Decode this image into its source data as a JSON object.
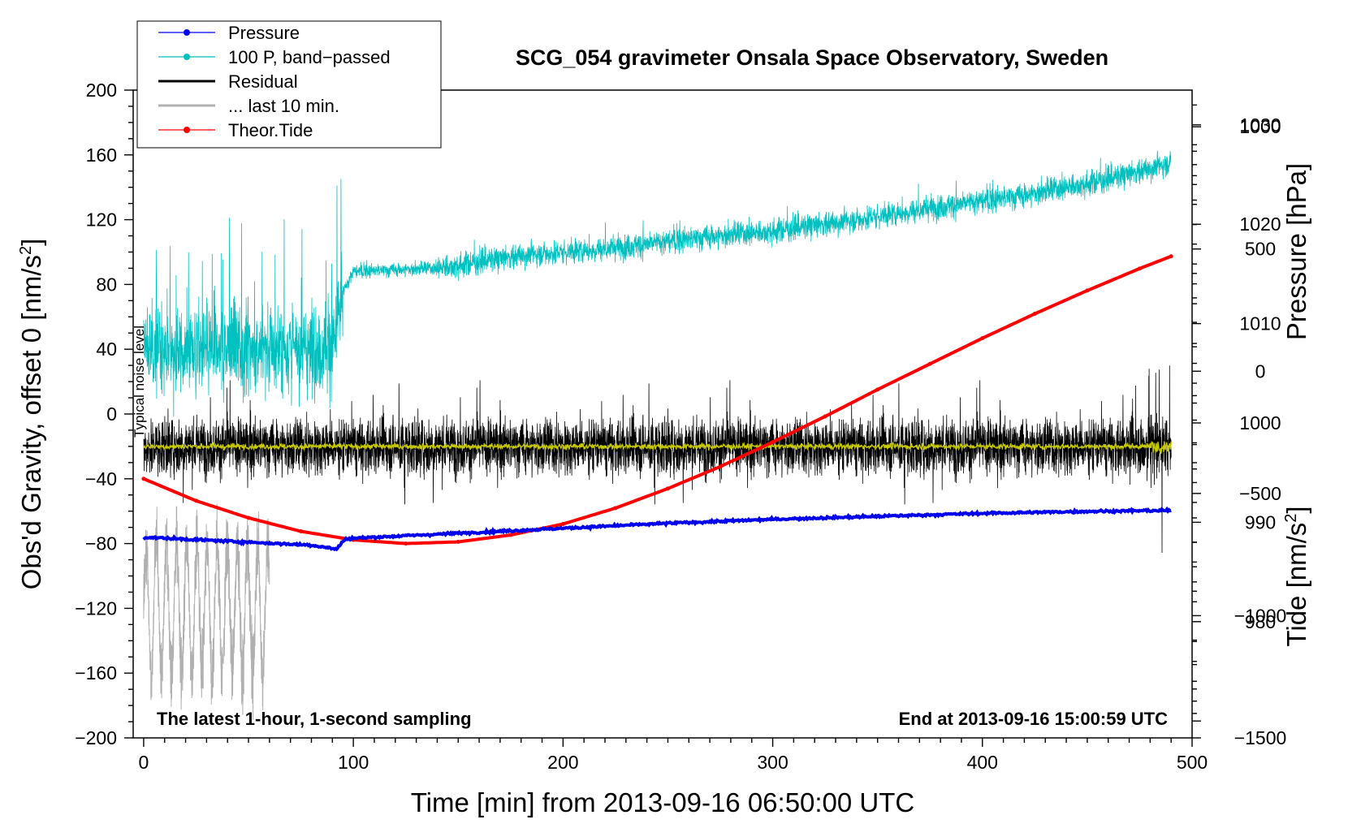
{
  "chart_data": {
    "type": "line",
    "title": "SCG_054 gravimeter Onsala Space Observatory, Sweden",
    "xlabel": "Time [min] from 2013-09-16 06:50:00 UTC",
    "ylabel_left": "Obs'd Gravity, offset 0 [nm/s",
    "ylabel_left_sup": "2",
    "ylabel_left_end": "]",
    "ylabel_pressure": "Pressure [hPa]",
    "ylabel_tide": "Tide [nm/s",
    "ylabel_tide_sup": "2",
    "ylabel_tide_end": "]",
    "xlim": [
      -5,
      500
    ],
    "ylim": [
      -200,
      200
    ],
    "pressure_lim": [
      968.3,
      1033.5
    ],
    "tide_lim": [
      -1500,
      1150
    ],
    "x_ticks": [
      0,
      100,
      200,
      300,
      400,
      500
    ],
    "y_ticks": [
      -200,
      -160,
      -120,
      -80,
      -40,
      0,
      40,
      80,
      120,
      160,
      200
    ],
    "y_tick_labels": [
      "−200",
      "−160",
      "−120",
      "−80",
      "−40",
      "0",
      "40",
      "80",
      "120",
      "160",
      "200"
    ],
    "pressure_ticks": [
      980,
      990,
      1000,
      1010,
      1020,
      1030
    ],
    "tide_ticks": [
      -1500,
      -1000,
      -500,
      0,
      500,
      1000
    ],
    "tide_tick_labels": [
      "−1500",
      "−1000",
      "−500",
      "0",
      "500",
      "1000"
    ],
    "annotations": {
      "noise": "Typical noise level",
      "bottom_left": "The latest 1-hour, 1-second sampling",
      "bottom_right": "End at 2013-09-16 15:00:59 UTC"
    },
    "legend": [
      {
        "label": "Pressure",
        "color": "#0000ee",
        "marker": true
      },
      {
        "label": "100 P, band−passed",
        "color": "#00c0c0",
        "marker": true
      },
      {
        "label": "Residual",
        "color": "#000000",
        "marker": false
      },
      {
        "label": "... last 10 min.",
        "color": "#b0b0b0",
        "marker": false
      },
      {
        "label": "Theor.Tide",
        "color": "#ff0000",
        "marker": true
      }
    ],
    "series": [
      {
        "name": "Pressure",
        "axis": "pressure",
        "color": "#0000ee",
        "x": [
          0,
          20,
          40,
          60,
          80,
          92,
          96,
          100,
          150,
          200,
          250,
          300,
          350,
          400,
          450,
          490
        ],
        "y": [
          988.5,
          988.3,
          988.1,
          987.9,
          987.7,
          987.3,
          988.3,
          988.4,
          988.9,
          989.4,
          989.9,
          990.3,
          990.6,
          990.9,
          991.1,
          991.2
        ]
      },
      {
        "name": "100 P, band-passed",
        "axis": "gravity",
        "color": "#00c0c0",
        "x": [
          0,
          40,
          90,
          95,
          100,
          140,
          180,
          220,
          260,
          300,
          340,
          380,
          420,
          460,
          490
        ],
        "y": [
          40,
          40,
          40,
          75,
          88,
          90,
          98,
          102,
          108,
          113,
          120,
          128,
          135,
          145,
          155
        ]
      },
      {
        "name": "Residual",
        "axis": "gravity",
        "color": "#000000",
        "x": [
          0,
          490
        ],
        "y": [
          -20,
          -20
        ]
      },
      {
        "name": "Residual mean",
        "axis": "gravity",
        "color": "#c8c800",
        "x": [
          0,
          490
        ],
        "y": [
          -20,
          -20
        ]
      },
      {
        "name": "... last 10 min.",
        "axis": "gravity",
        "color": "#b0b0b0",
        "x": [
          0,
          60
        ],
        "y": [
          -120,
          -120
        ]
      },
      {
        "name": "Theor.Tide",
        "axis": "tide",
        "color": "#ff0000",
        "x": [
          0,
          25,
          50,
          75,
          100,
          125,
          150,
          175,
          200,
          225,
          250,
          275,
          300,
          325,
          350,
          375,
          400,
          425,
          450,
          475,
          490
        ],
        "y": [
          -440,
          -530,
          -600,
          -655,
          -690,
          -705,
          -698,
          -670,
          -625,
          -560,
          -480,
          -390,
          -290,
          -185,
          -75,
          30,
          135,
          235,
          330,
          420,
          470
        ]
      }
    ]
  }
}
